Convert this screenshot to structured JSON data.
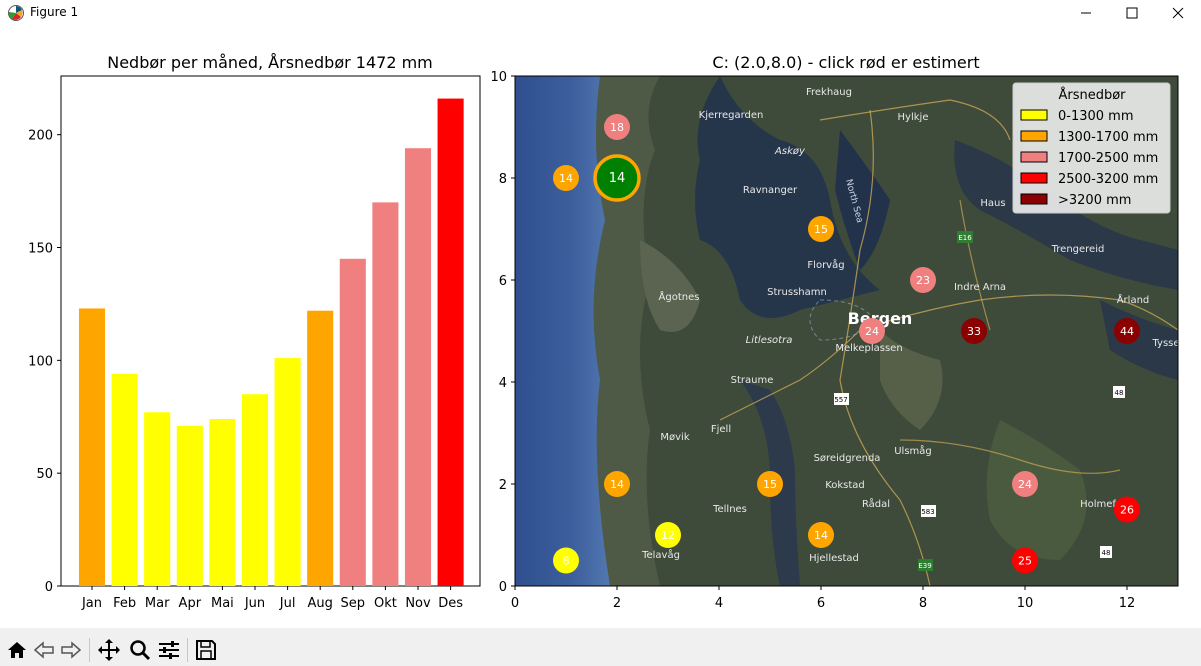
{
  "window": {
    "title": "Figure 1",
    "buttons": [
      "minimize",
      "maximize",
      "close"
    ]
  },
  "toolbar": {
    "buttons": [
      {
        "name": "home-icon"
      },
      {
        "name": "back-icon"
      },
      {
        "name": "forward-icon"
      },
      {
        "name": "pan-icon"
      },
      {
        "name": "zoom-icon"
      },
      {
        "name": "configure-icon"
      },
      {
        "name": "save-icon"
      }
    ]
  },
  "chart_data": [
    {
      "type": "bar",
      "title": "Nedbør per måned, Årsnedbør 1472 mm",
      "categories": [
        "Jan",
        "Feb",
        "Mar",
        "Apr",
        "Mai",
        "Jun",
        "Jul",
        "Aug",
        "Sep",
        "Okt",
        "Nov",
        "Des"
      ],
      "values": [
        123,
        94,
        77,
        71,
        74,
        85,
        101,
        122,
        145,
        170,
        194,
        216
      ],
      "colors": [
        "#ffa500",
        "#ffff00",
        "#ffff00",
        "#ffff00",
        "#ffff00",
        "#ffff00",
        "#ffff00",
        "#ffa500",
        "#f08080",
        "#f08080",
        "#f08080",
        "#ff0000"
      ],
      "ylim": [
        0,
        226
      ],
      "yticks": [
        0,
        50,
        100,
        150,
        200
      ],
      "xlabel": "",
      "ylabel": ""
    },
    {
      "type": "scatter",
      "title": "C: (2.0,8.0) - click rød er estimert",
      "xlim": [
        0,
        13
      ],
      "ylim": [
        0,
        10
      ],
      "xticks": [
        0,
        2,
        4,
        6,
        8,
        10,
        12
      ],
      "yticks": [
        0,
        2,
        4,
        6,
        8,
        10
      ],
      "background": "satellite map (Bergen area)",
      "points": [
        {
          "x": 2,
          "y": 9,
          "label": "18",
          "color": "#f08080"
        },
        {
          "x": 1,
          "y": 8,
          "label": "14",
          "color": "#ffa500"
        },
        {
          "x": 6,
          "y": 7,
          "label": "15",
          "color": "#ffa500"
        },
        {
          "x": 8,
          "y": 6,
          "label": "23",
          "color": "#f08080"
        },
        {
          "x": 7,
          "y": 5,
          "label": "24",
          "color": "#f08080"
        },
        {
          "x": 9,
          "y": 5,
          "label": "33",
          "color": "#8b0000"
        },
        {
          "x": 12,
          "y": 5,
          "label": "44",
          "color": "#8b0000"
        },
        {
          "x": 2,
          "y": 2,
          "label": "14",
          "color": "#ffa500"
        },
        {
          "x": 5,
          "y": 2,
          "label": "15",
          "color": "#ffa500"
        },
        {
          "x": 10,
          "y": 2,
          "label": "24",
          "color": "#f08080"
        },
        {
          "x": 12,
          "y": 1.5,
          "label": "26",
          "color": "#ff0000"
        },
        {
          "x": 3,
          "y": 1,
          "label": "12",
          "color": "#ffff00"
        },
        {
          "x": 6,
          "y": 1,
          "label": "14",
          "color": "#ffa500"
        },
        {
          "x": 1,
          "y": 0.5,
          "label": "8",
          "color": "#ffff00"
        },
        {
          "x": 10,
          "y": 0.5,
          "label": "25",
          "color": "#ff0000"
        }
      ],
      "selected": {
        "x": 2,
        "y": 8,
        "label": "14",
        "color": "#008000",
        "edge": "#ffa500"
      },
      "legend": {
        "title": "Årsnedbør",
        "placement": "top-right",
        "entries": [
          {
            "label": "0-1300 mm",
            "color": "#ffff00"
          },
          {
            "label": "1300-1700 mm",
            "color": "#ffa500"
          },
          {
            "label": "1700-2500 mm",
            "color": "#f08080"
          },
          {
            "label": "2500-3200 mm",
            "color": "#ff0000"
          },
          {
            "label": ">3200 mm",
            "color": "#8b0000"
          }
        ]
      },
      "map_labels": [
        "Frekhaug",
        "Kjerregarden",
        "Hylkje",
        "Askøy",
        "Ravnanger",
        "North Sea",
        "Haus",
        "Florvåg",
        "Trengereid",
        "Ågotnes",
        "Strusshamn",
        "Indre Arna",
        "Bergen",
        "Årland",
        "Litlesotra",
        "Melkeplassen",
        "Tysse",
        "Straume",
        "Møvik",
        "Fjell",
        "Ulsmåg",
        "Søreidgrenda",
        "Kokstad",
        "Rådal",
        "Tellnes",
        "Holmef",
        "Telavåg",
        "Hjellestad"
      ],
      "road_signs": [
        "E16",
        "557",
        "48",
        "583",
        "E39",
        "48"
      ]
    }
  ]
}
